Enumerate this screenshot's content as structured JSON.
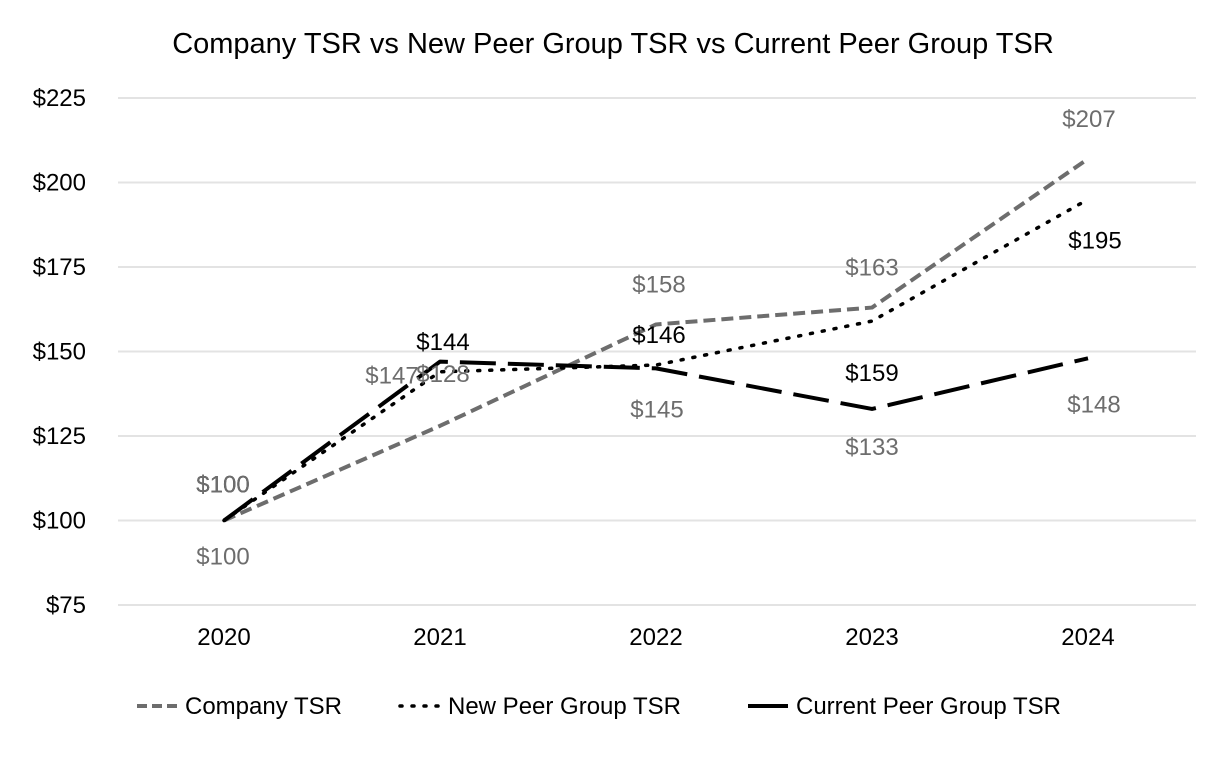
{
  "chart_data": {
    "type": "line",
    "title": "Company TSR vs New Peer Group TSR vs Current Peer Group TSR",
    "xlabel": "",
    "ylabel": "",
    "categories": [
      "2020",
      "2021",
      "2022",
      "2023",
      "2024"
    ],
    "y_ticks": [
      "$75",
      "$100",
      "$125",
      "$150",
      "$175",
      "$200",
      "$225"
    ],
    "ylim": [
      75,
      225
    ],
    "grid": true,
    "legend_position": "bottom",
    "series": [
      {
        "name": "Company TSR",
        "values": [
          100,
          128,
          158,
          163,
          207
        ],
        "labels": [
          "$100",
          "$128",
          "$158",
          "$163",
          "$207"
        ],
        "color": "#6d6d6d",
        "line_style": "dashed"
      },
      {
        "name": "New Peer Group TSR",
        "values": [
          100,
          144,
          146,
          159,
          195
        ],
        "labels": [
          "$100",
          "$144",
          "$146",
          "$159",
          "$195"
        ],
        "color": "#000000",
        "line_style": "dotted"
      },
      {
        "name": "Current Peer Group TSR",
        "values": [
          100,
          147,
          145,
          133,
          148
        ],
        "labels": [
          "$100",
          "$147",
          "$145",
          "$133",
          "$148"
        ],
        "color": "#000000",
        "label_color": "#6d6d6d",
        "line_style": "long-dash"
      }
    ]
  }
}
